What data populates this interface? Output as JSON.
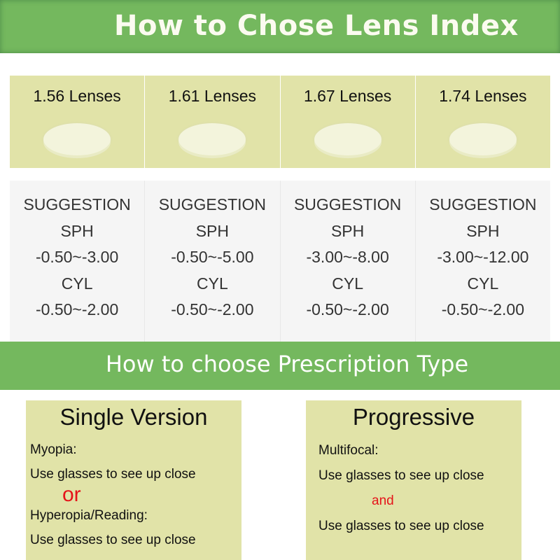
{
  "header": {
    "title": "How to Chose Lens Index"
  },
  "lenses": [
    {
      "label": "1.56 Lenses",
      "suggestion": "SUGGESTION",
      "sph_label": "SPH",
      "sph": "-0.50~-3.00",
      "cyl_label": "CYL",
      "cyl": "-0.50~-2.00"
    },
    {
      "label": "1.61 Lenses",
      "suggestion": "SUGGESTION",
      "sph_label": "SPH",
      "sph": "-0.50~-5.00",
      "cyl_label": "CYL",
      "cyl": "-0.50~-2.00"
    },
    {
      "label": "1.67 Lenses",
      "suggestion": "SUGGESTION",
      "sph_label": "SPH",
      "sph": "-3.00~-8.00",
      "cyl_label": "CYL",
      "cyl": "-0.50~-2.00"
    },
    {
      "label": "1.74 Lenses",
      "suggestion": "SUGGESTION",
      "sph_label": "SPH",
      "sph": "-3.00~-12.00",
      "cyl_label": "CYL",
      "cyl": "-0.50~-2.00"
    }
  ],
  "section2": {
    "title": "How to choose Prescription Type"
  },
  "single": {
    "title": "Single Version",
    "line1": "Myopia:",
    "line2": "Use glasses to see up close",
    "conj": "or",
    "line3": "Hyperopia/Reading:",
    "line4": "Use glasses to see up close"
  },
  "progressive": {
    "title": "Progressive",
    "line1": "Multifocal:",
    "line2": "Use glasses to see up close",
    "conj": "and",
    "line3": "Use glasses to see up close"
  },
  "colors": {
    "banner": "#74b85e",
    "cell": "#e1e3a8",
    "accent_red": "#e5141a"
  }
}
